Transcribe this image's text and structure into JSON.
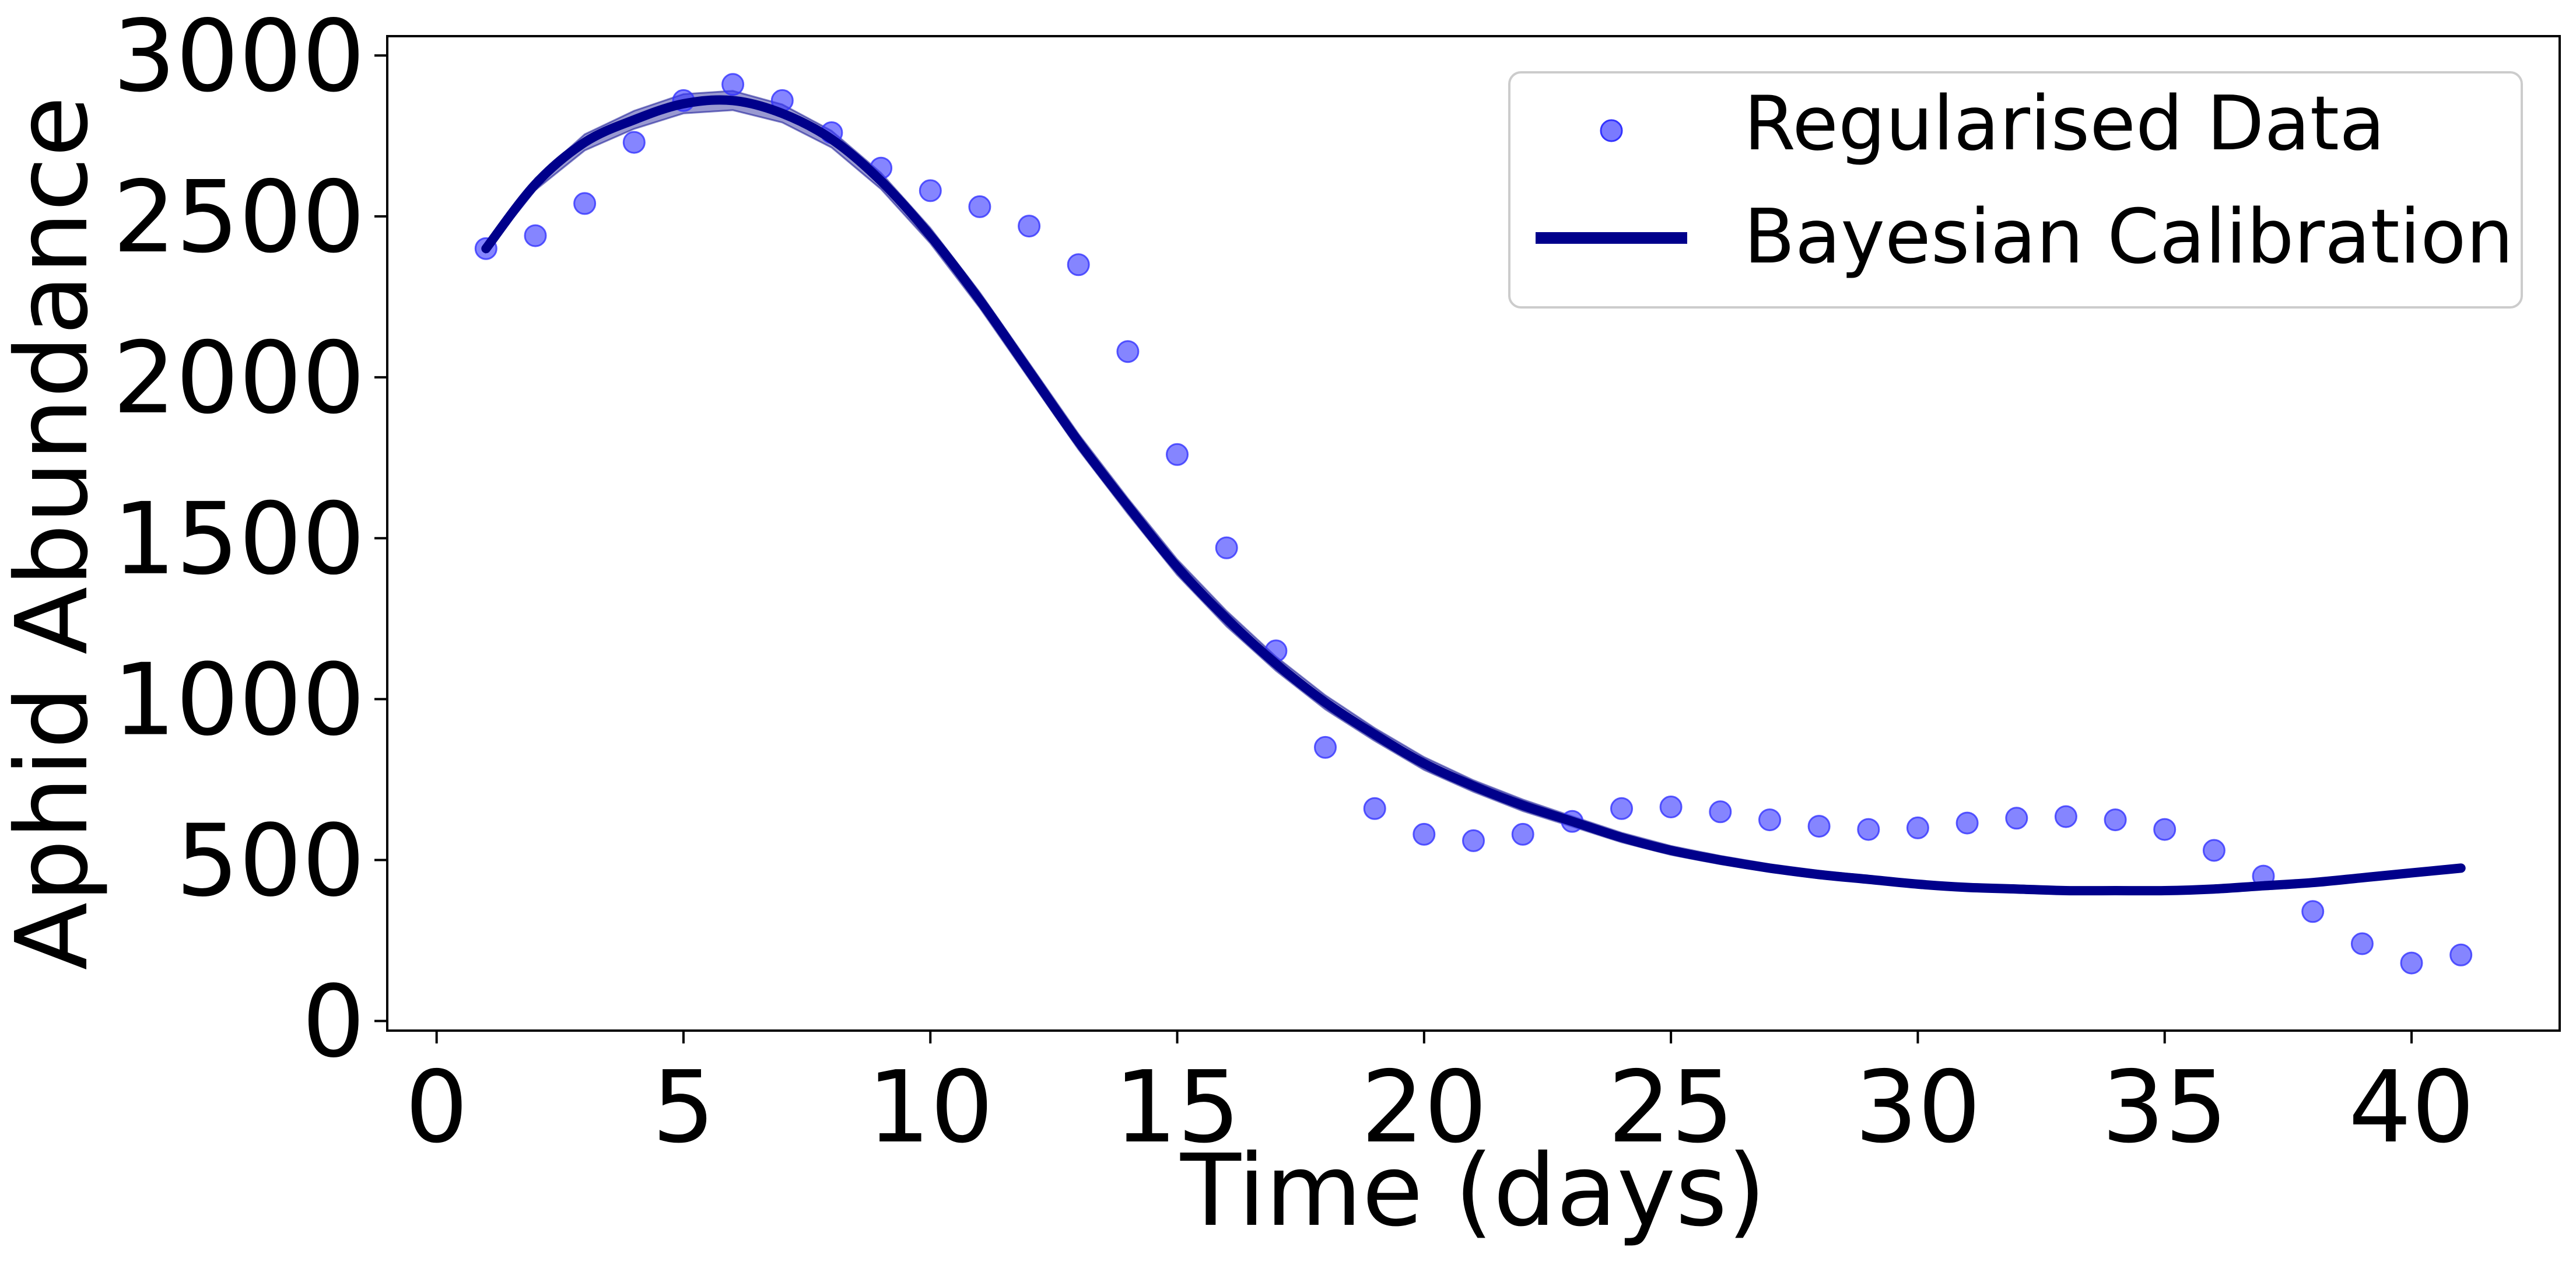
{
  "chart_data": {
    "type": "line",
    "title": "",
    "xlabel": "Time (days)",
    "ylabel": "Aphid Abundance",
    "xlim": [
      -1.0,
      43.0
    ],
    "ylim": [
      -30,
      3060
    ],
    "x_ticks": [
      0,
      5,
      10,
      15,
      20,
      25,
      30,
      35,
      40
    ],
    "y_ticks": [
      0,
      500,
      1000,
      1500,
      2000,
      2500,
      3000
    ],
    "grid": false,
    "legend_position": "upper right",
    "colors": {
      "data_points": "#3333ff",
      "model_line": "#00008b",
      "model_band": "#00008b"
    },
    "series": [
      {
        "name": "Regularised Data",
        "kind": "scatter",
        "marker": "circle",
        "x": [
          1,
          2,
          3,
          4,
          5,
          6,
          7,
          8,
          9,
          10,
          11,
          12,
          13,
          14,
          15,
          16,
          17,
          18,
          19,
          20,
          21,
          22,
          23,
          24,
          25,
          26,
          27,
          28,
          29,
          30,
          31,
          32,
          33,
          34,
          35,
          36,
          37,
          38,
          39,
          40,
          41
        ],
        "y": [
          2400,
          2440,
          2540,
          2730,
          2860,
          2910,
          2860,
          2760,
          2650,
          2580,
          2530,
          2470,
          2350,
          2080,
          1760,
          1470,
          1150,
          850,
          660,
          580,
          560,
          580,
          620,
          660,
          665,
          650,
          625,
          605,
          595,
          600,
          615,
          630,
          635,
          625,
          595,
          530,
          450,
          340,
          240,
          180,
          205
        ]
      },
      {
        "name": "Bayesian Calibration",
        "kind": "line",
        "x": [
          1,
          2,
          3,
          4,
          5,
          6,
          7,
          8,
          9,
          10,
          11,
          12,
          13,
          14,
          15,
          16,
          17,
          18,
          19,
          20,
          21,
          22,
          23,
          24,
          25,
          26,
          27,
          28,
          29,
          30,
          31,
          32,
          33,
          34,
          35,
          36,
          37,
          38,
          39,
          40,
          41
        ],
        "y": [
          2400,
          2600,
          2730,
          2800,
          2850,
          2860,
          2820,
          2740,
          2610,
          2440,
          2240,
          2020,
          1800,
          1600,
          1410,
          1250,
          1110,
          990,
          890,
          800,
          730,
          670,
          620,
          570,
          530,
          500,
          475,
          455,
          440,
          425,
          415,
          410,
          405,
          405,
          405,
          410,
          420,
          430,
          445,
          460,
          475
        ],
        "band_halfwidth": [
          10,
          18,
          25,
          28,
          30,
          30,
          28,
          26,
          25,
          24,
          24,
          24,
          24,
          24,
          24,
          24,
          22,
          22,
          20,
          20,
          18,
          18,
          16,
          15,
          14,
          13,
          12,
          12,
          11,
          10,
          10,
          10,
          10,
          10,
          10,
          10,
          10,
          10,
          10,
          10,
          10
        ]
      }
    ]
  }
}
